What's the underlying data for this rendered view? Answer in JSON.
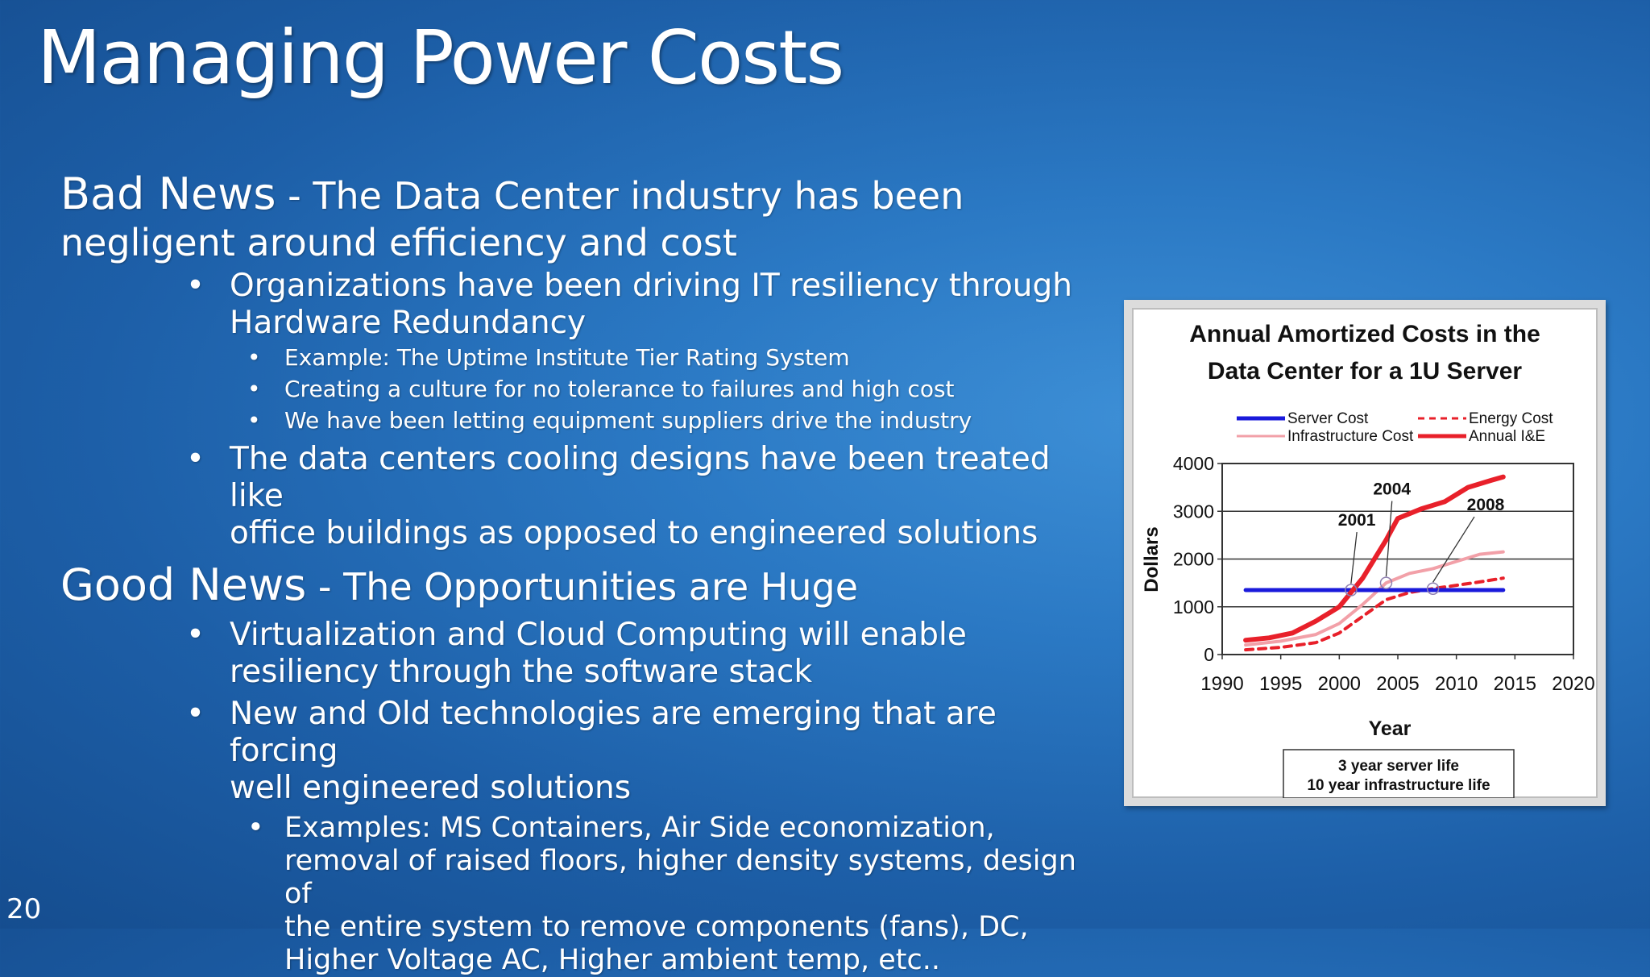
{
  "slide": {
    "title": "Managing Power Costs",
    "page_number": "20",
    "bad_news": {
      "head": "Bad News",
      "dash": " - ",
      "text_1": "The Data Center industry has been",
      "text_2": "negligent around efficiency and cost",
      "bullets": [
        {
          "line_1": "Organizations have been driving IT resiliency through",
          "line_2": "Hardware Redundancy",
          "sub": [
            "Example: The Uptime Institute Tier Rating System",
            "Creating a culture for no tolerance to failures and high cost",
            "We have been letting equipment suppliers drive the industry"
          ]
        },
        {
          "line_1": "The data centers cooling designs have been treated like",
          "line_2": "office buildings as opposed to engineered solutions"
        }
      ]
    },
    "good_news": {
      "head": "Good News",
      "dash": " - ",
      "text_1": "The Opportunities are Huge",
      "bullets": [
        {
          "line_1": "Virtualization and Cloud Computing will enable",
          "line_2": "resiliency through the software stack"
        },
        {
          "line_1": "New and Old technologies are emerging that are forcing",
          "line_2": "well engineered solutions",
          "sub_lines": [
            "Examples: MS Containers, Air Side economization,",
            "removal of raised floors, higher density systems, design of",
            "the entire system to remove components (fans), DC,",
            "Higher Voltage AC, Higher ambient temp, etc.."
          ]
        }
      ]
    },
    "bullet_glyph": "•"
  },
  "chart_data": {
    "type": "line",
    "title": [
      "Annual Amortized Costs in the",
      "Data Center for a 1U Server"
    ],
    "xlabel": "Year",
    "ylabel": "Dollars",
    "xlim": [
      1990,
      2020
    ],
    "ylim": [
      0,
      4000
    ],
    "x_ticks": [
      1990,
      1995,
      2000,
      2005,
      2010,
      2015,
      2020
    ],
    "y_ticks": [
      0,
      1000,
      2000,
      3000,
      4000
    ],
    "grid": "horizontal",
    "legend_position": "top",
    "series": [
      {
        "name": "Server Cost",
        "color": "#1a1adb",
        "style": "solid",
        "x": [
          1992,
          2014
        ],
        "y": [
          1350,
          1350
        ]
      },
      {
        "name": "Energy Cost",
        "color": "#e8202a",
        "style": "dashed",
        "x": [
          1992,
          1995,
          1998,
          2000,
          2002,
          2004,
          2006,
          2008,
          2010,
          2012,
          2014
        ],
        "y": [
          100,
          150,
          250,
          450,
          800,
          1150,
          1300,
          1380,
          1450,
          1520,
          1600
        ]
      },
      {
        "name": "Infrastructure Cost",
        "color": "#f2a0a8",
        "style": "solid",
        "x": [
          1992,
          1995,
          1998,
          2000,
          2002,
          2004,
          2006,
          2008,
          2010,
          2012,
          2014
        ],
        "y": [
          200,
          280,
          420,
          650,
          1050,
          1500,
          1700,
          1800,
          1950,
          2100,
          2150
        ]
      },
      {
        "name": "Annual I&E",
        "color": "#e8202a",
        "style": "solid",
        "x": [
          1992,
          1994,
          1996,
          1998,
          2000,
          2002,
          2004,
          2005,
          2007,
          2009,
          2011,
          2013,
          2014
        ],
        "y": [
          300,
          350,
          450,
          700,
          1000,
          1600,
          2400,
          2850,
          3050,
          3200,
          3500,
          3650,
          3720
        ]
      }
    ],
    "annotations": [
      {
        "text": "2001",
        "x": 2001,
        "y": 1350
      },
      {
        "text": "2004",
        "x": 2004,
        "y": 1500
      },
      {
        "text": "2008",
        "x": 2008,
        "y": 1380
      }
    ],
    "note": [
      "3 year server life",
      "10 year infrastructure life"
    ]
  }
}
